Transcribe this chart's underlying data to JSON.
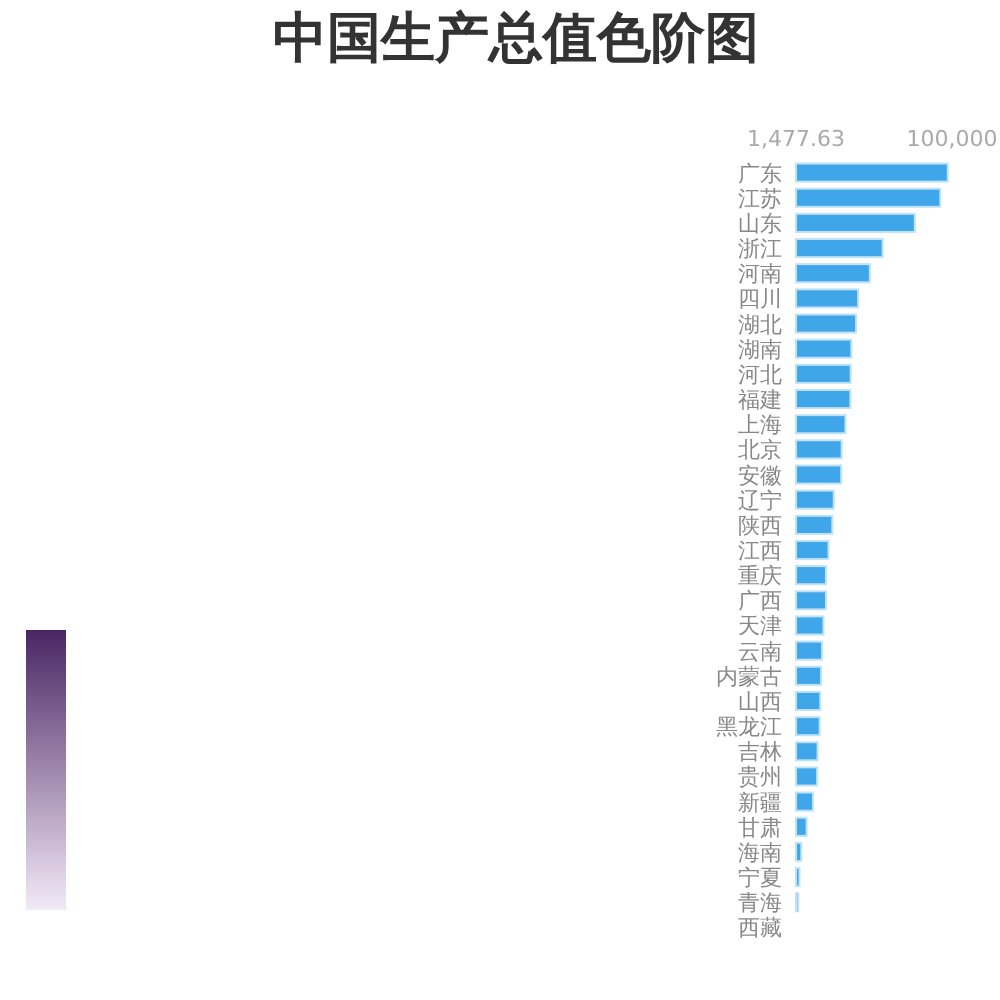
{
  "chart_data": {
    "type": "bar",
    "title": "中国生产总值色阶图",
    "orientation": "horizontal",
    "categories": [
      "广东",
      "江苏",
      "山东",
      "浙江",
      "河南",
      "四川",
      "湖北",
      "湖南",
      "河北",
      "福建",
      "上海",
      "北京",
      "安徽",
      "辽宁",
      "陕西",
      "江西",
      "重庆",
      "广西",
      "天津",
      "云南",
      "内蒙古",
      "山西",
      "黑龙江",
      "吉林",
      "贵州",
      "新疆",
      "甘肃",
      "海南",
      "宁夏",
      "青海",
      "西藏"
    ],
    "values": [
      97300,
      92600,
      76500,
      56200,
      48100,
      40700,
      39400,
      36400,
      36000,
      35800,
      32700,
      30300,
      30000,
      25300,
      24400,
      22000,
      20400,
      20400,
      18800,
      17900,
      17300,
      16800,
      16400,
      15100,
      14800,
      12200,
      8200,
      4800,
      3700,
      2900,
      1477.63
    ],
    "color": "#3fa6e9",
    "xlim": [
      1477.63,
      100000
    ],
    "xticks": [
      {
        "value": 1477.63,
        "label": "1,477.63"
      },
      {
        "value": 100000,
        "label": "100,000"
      }
    ],
    "grid": false
  }
}
